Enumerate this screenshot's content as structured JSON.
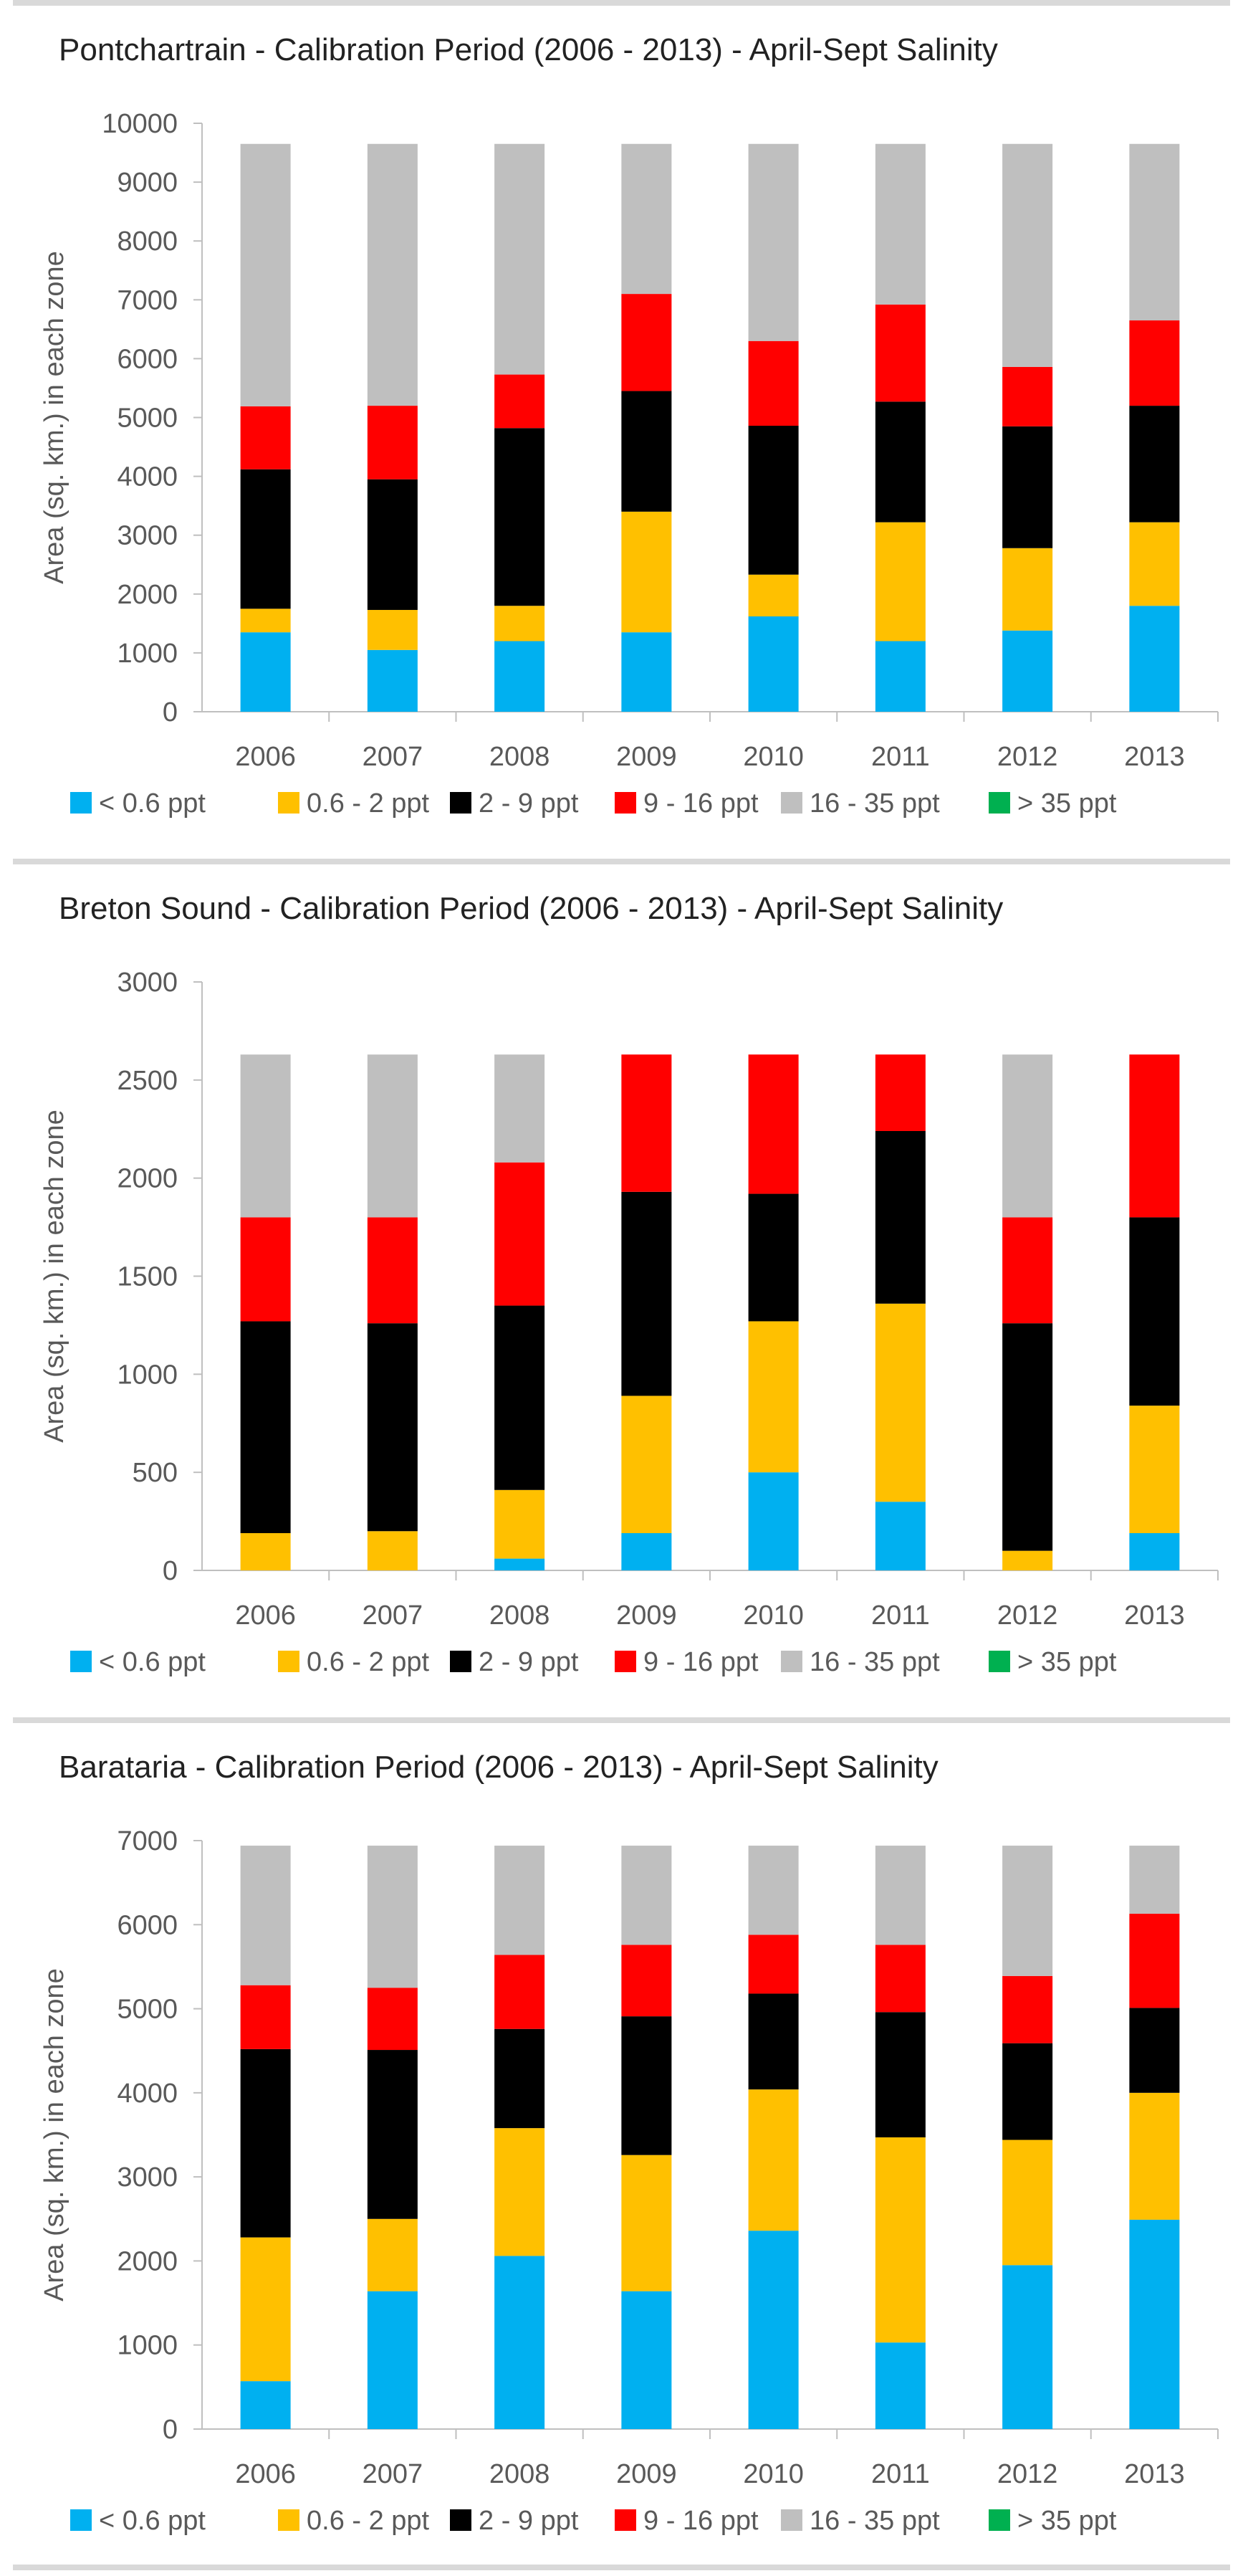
{
  "legend": {
    "items": [
      {
        "label": "< 0.6 ppt",
        "color": "#00b0f0"
      },
      {
        "label": "0.6 - 2 ppt",
        "color": "#ffc000"
      },
      {
        "label": "2 - 9 ppt",
        "color": "#000000"
      },
      {
        "label": "9 - 16 ppt",
        "color": "#ff0000"
      },
      {
        "label": "16 - 35 ppt",
        "color": "#bfbfbf"
      },
      {
        "label": "> 35 ppt",
        "color": "#00b050"
      }
    ]
  },
  "chart_data": [
    {
      "type": "bar",
      "stacked": true,
      "title": "Pontchartrain - Calibration Period (2006 - 2013) - April-Sept Salinity",
      "xlabel": "",
      "ylabel": "Area (sq. km.) in each zone",
      "ylim": [
        0,
        10000
      ],
      "yticks": [
        0,
        1000,
        2000,
        3000,
        4000,
        5000,
        6000,
        7000,
        8000,
        9000,
        10000
      ],
      "yticklabels": [
        "0",
        "1000",
        "2000",
        "3000",
        "4000",
        "5000",
        "6000",
        "7000",
        "8000",
        "9000",
        "10000"
      ],
      "grid": false,
      "legend_position": "bottom",
      "categories": [
        "2006",
        "2007",
        "2008",
        "2009",
        "2010",
        "2011",
        "2012",
        "2013"
      ],
      "series": [
        {
          "name": "< 0.6 ppt",
          "values": [
            1350,
            1050,
            1200,
            1350,
            1620,
            1200,
            1380,
            1800
          ]
        },
        {
          "name": "0.6 - 2 ppt",
          "values": [
            400,
            680,
            600,
            2050,
            710,
            2020,
            1400,
            1420
          ]
        },
        {
          "name": "2 - 9 ppt",
          "values": [
            2370,
            2220,
            3020,
            2050,
            2530,
            2050,
            2070,
            1980
          ]
        },
        {
          "name": "9 - 16 ppt",
          "values": [
            1070,
            1250,
            910,
            1650,
            1440,
            1650,
            1010,
            1450
          ]
        },
        {
          "name": "16 - 35 ppt",
          "values": [
            4460,
            4450,
            3920,
            2550,
            3350,
            2730,
            3790,
            3000
          ]
        },
        {
          "name": "> 35 ppt",
          "values": [
            0,
            0,
            0,
            0,
            0,
            0,
            0,
            0
          ]
        }
      ]
    },
    {
      "type": "bar",
      "stacked": true,
      "title": "Breton Sound - Calibration Period (2006 - 2013) - April-Sept Salinity",
      "xlabel": "",
      "ylabel": "Area (sq. km.) in each zone",
      "ylim": [
        0,
        3000
      ],
      "yticks": [
        0,
        500,
        1000,
        1500,
        2000,
        2500,
        3000
      ],
      "yticklabels": [
        "0",
        "500",
        "1000",
        "1500",
        "2000",
        "2500",
        "3000"
      ],
      "grid": false,
      "legend_position": "bottom",
      "categories": [
        "2006",
        "2007",
        "2008",
        "2009",
        "2010",
        "2011",
        "2012",
        "2013"
      ],
      "series": [
        {
          "name": "< 0.6 ppt",
          "values": [
            0,
            0,
            60,
            190,
            500,
            350,
            0,
            190
          ]
        },
        {
          "name": "0.6 - 2 ppt",
          "values": [
            190,
            200,
            350,
            700,
            770,
            1010,
            100,
            650
          ]
        },
        {
          "name": "2 - 9 ppt",
          "values": [
            1080,
            1060,
            940,
            1040,
            650,
            880,
            1160,
            960
          ]
        },
        {
          "name": "9 - 16 ppt",
          "values": [
            530,
            540,
            730,
            700,
            710,
            390,
            540,
            830
          ]
        },
        {
          "name": "16 - 35 ppt",
          "values": [
            830,
            830,
            550,
            0,
            0,
            0,
            830,
            0
          ]
        },
        {
          "name": "> 35 ppt",
          "values": [
            0,
            0,
            0,
            0,
            0,
            0,
            0,
            0
          ]
        }
      ]
    },
    {
      "type": "bar",
      "stacked": true,
      "title": "Barataria - Calibration Period (2006 - 2013) - April-Sept Salinity",
      "xlabel": "",
      "ylabel": "Area (sq. km.) in each zone",
      "ylim": [
        0,
        7000
      ],
      "yticks": [
        0,
        1000,
        2000,
        3000,
        4000,
        5000,
        6000,
        7000
      ],
      "yticklabels": [
        "0",
        "1000",
        "2000",
        "3000",
        "4000",
        "5000",
        "6000",
        "7000"
      ],
      "grid": false,
      "legend_position": "bottom",
      "categories": [
        "2006",
        "2007",
        "2008",
        "2009",
        "2010",
        "2011",
        "2012",
        "2013"
      ],
      "series": [
        {
          "name": "< 0.6 ppt",
          "values": [
            570,
            1640,
            2060,
            1640,
            2360,
            1030,
            1950,
            2490
          ]
        },
        {
          "name": "0.6 - 2 ppt",
          "values": [
            1710,
            860,
            1520,
            1620,
            1680,
            2440,
            1490,
            1510
          ]
        },
        {
          "name": "2 - 9 ppt",
          "values": [
            2240,
            2010,
            1180,
            1650,
            1140,
            1490,
            1150,
            1010
          ]
        },
        {
          "name": "9 - 16 ppt",
          "values": [
            760,
            740,
            880,
            850,
            700,
            800,
            800,
            1120
          ]
        },
        {
          "name": "16 - 35 ppt",
          "values": [
            1660,
            1690,
            1300,
            1180,
            1060,
            1180,
            1550,
            810
          ]
        },
        {
          "name": "> 35 ppt",
          "values": [
            0,
            0,
            0,
            0,
            0,
            0,
            0,
            0
          ]
        }
      ]
    }
  ]
}
